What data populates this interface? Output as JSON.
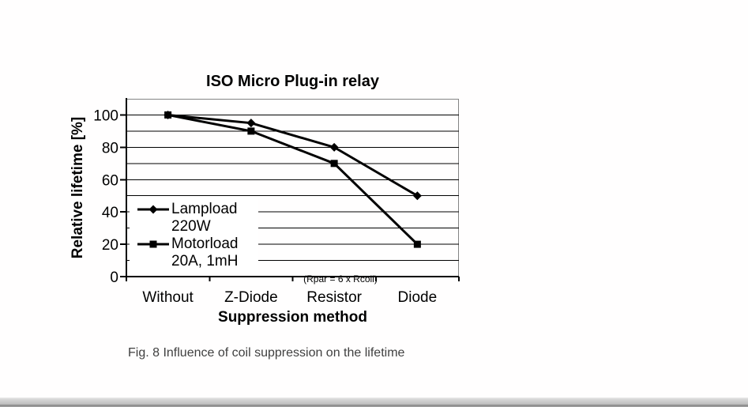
{
  "chart": {
    "title": "ISO Micro Plug-in relay",
    "y_axis_title": "Relative lifetime [%]",
    "x_axis_title": "Suppression method",
    "resistor_note": "(Rpar = 6 x Rcoil)"
  },
  "caption": "Fig. 8 Influence of coil suppression on the lifetime",
  "chart_data": {
    "type": "line",
    "title": "ISO Micro Plug-in relay",
    "xlabel": "Suppression method",
    "ylabel": "Relative lifetime [%]",
    "categories": [
      "Without",
      "Z-Diode",
      "Resistor",
      "Diode"
    ],
    "series": [
      {
        "name": "Lampload 220W",
        "legend_line1": "Lampload",
        "legend_line2": "220W",
        "marker": "diamond",
        "color": "#000000",
        "values": [
          100,
          95,
          80,
          50
        ]
      },
      {
        "name": "Motorload 20A, 1mH",
        "legend_line1": "Motorload",
        "legend_line2": "20A, 1mH",
        "marker": "square",
        "color": "#000000",
        "values": [
          100,
          90,
          70,
          20
        ]
      }
    ],
    "ylim": [
      0,
      110
    ],
    "y_major_ticks": [
      0,
      20,
      40,
      60,
      80,
      100
    ],
    "gridline_step": 10,
    "grid": "horizontal gridlines every 10",
    "legend_position": "inside left",
    "annotation": "(Rpar = 6 x Rcoil)",
    "annotation_category": "Resistor"
  },
  "colors": {
    "series_stroke": "#000000",
    "gridline": "#000000",
    "plot_border": "#848484",
    "axis": "#000000",
    "text": "#000000",
    "caption_text": "#404040",
    "background": "#ffffff",
    "legend_background": "#ffffff",
    "bottom_bar": "#c6c6c6",
    "bottom_bar_edge": "#8e8e8e"
  }
}
